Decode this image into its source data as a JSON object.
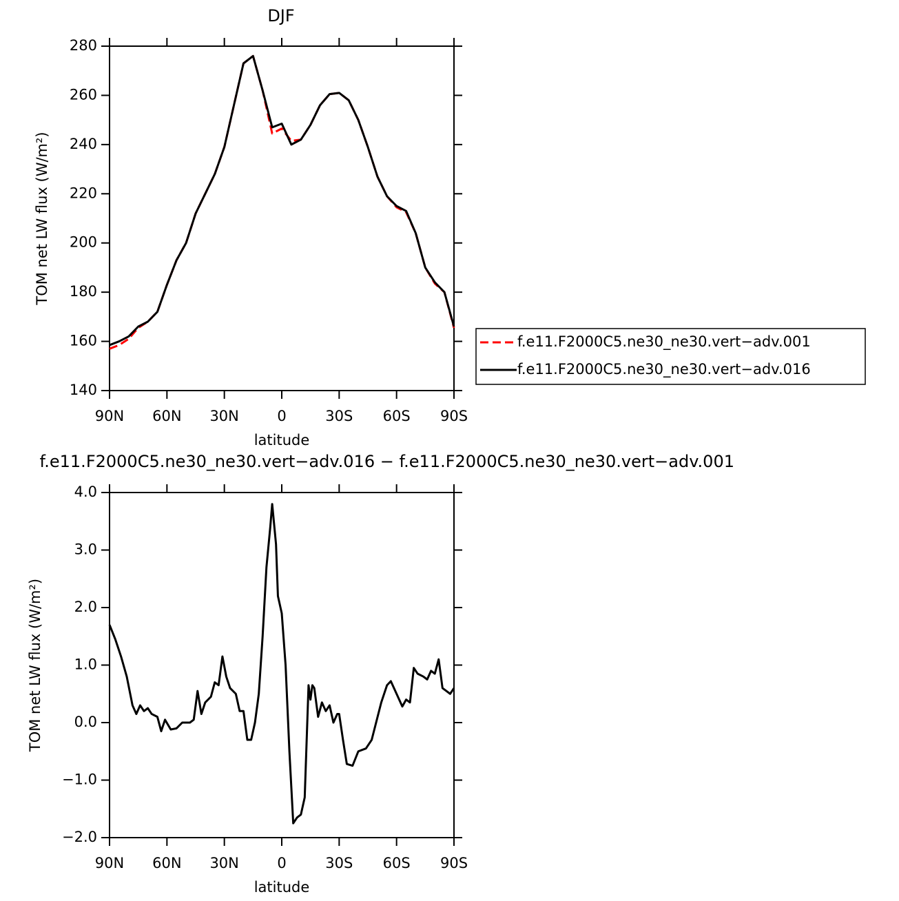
{
  "chart_data": [
    {
      "type": "line",
      "title": "DJF",
      "xlabel": "latitude",
      "ylabel": "TOM net LW flux (W/m²)",
      "x": [
        90,
        85,
        80,
        75,
        70,
        65,
        60,
        55,
        50,
        45,
        40,
        35,
        30,
        25,
        20,
        15,
        10,
        5,
        0,
        -5,
        -10,
        -15,
        -20,
        -25,
        -30,
        -35,
        -40,
        -45,
        -50,
        -55,
        -60,
        -65,
        -70,
        -75,
        -80,
        -85,
        -90
      ],
      "series": [
        {
          "name": "f.e11.F2000C5.ne30_ne30.vert−adv.001",
          "color": "#ff0000",
          "line_style": "dashed",
          "values": [
            157,
            158.5,
            161,
            165.5,
            168,
            172,
            183,
            193,
            200,
            212,
            220,
            228,
            239,
            256,
            273,
            276,
            262,
            244.5,
            246.5,
            241.5,
            242,
            248,
            256,
            260.5,
            261,
            258,
            250,
            239,
            227,
            219,
            214.5,
            212.5,
            204,
            190,
            183.5,
            180,
            165.5
          ]
        },
        {
          "name": "f.e11.F2000C5.ne30_ne30.vert−adv.016",
          "color": "#000000",
          "line_style": "solid",
          "values": [
            158.5,
            160,
            162,
            166,
            168,
            172,
            183,
            193,
            200,
            212,
            220,
            228,
            239,
            256,
            273,
            276,
            262,
            247,
            248.5,
            240,
            242,
            248,
            256,
            260.5,
            261,
            258,
            250,
            239,
            227,
            219,
            215,
            213,
            204,
            190,
            184,
            180,
            166
          ]
        }
      ],
      "xlim": [
        90,
        -90
      ],
      "xticks": [
        {
          "value": 90,
          "label": "90N"
        },
        {
          "value": 60,
          "label": "60N"
        },
        {
          "value": 30,
          "label": "30N"
        },
        0,
        {
          "value": -30,
          "label": "30S"
        },
        {
          "value": -60,
          "label": "60S"
        },
        {
          "value": -90,
          "label": "90S"
        }
      ],
      "ylim": [
        140,
        280
      ],
      "yticks": [
        140,
        160,
        180,
        200,
        220,
        240,
        260,
        280
      ],
      "legend": "right"
    },
    {
      "type": "line",
      "title": "f.e11.F2000C5.ne30_ne30.vert−adv.016 − f.e11.F2000C5.ne30_ne30.vert−adv.001",
      "xlabel": "latitude",
      "ylabel": "TOM net LW flux (W/m²)",
      "color": "#000000",
      "x": [
        90,
        87,
        84,
        81,
        78,
        76,
        74,
        72,
        70,
        68,
        65,
        63,
        61,
        58,
        55,
        52,
        48,
        46,
        44,
        42,
        40,
        37,
        35,
        33,
        31,
        29,
        27,
        24,
        22,
        20,
        18,
        16,
        14,
        12,
        10,
        8,
        6,
        5,
        3,
        2,
        0,
        -2,
        -4,
        -6,
        -8,
        -10,
        -12,
        -14,
        -15,
        -16,
        -17,
        -19,
        -21,
        -23,
        -25,
        -27,
        -29,
        -30,
        -32,
        -34,
        -37,
        -40,
        -44,
        -47,
        -52,
        -55,
        -57,
        -60,
        -63,
        -65,
        -67,
        -69,
        -71,
        -74,
        -76,
        -78,
        -80,
        -82,
        -84,
        -86,
        -88,
        -90
      ],
      "values": [
        1.7,
        1.45,
        1.15,
        0.8,
        0.3,
        0.15,
        0.3,
        0.2,
        0.25,
        0.15,
        0.1,
        -0.15,
        0.05,
        -0.12,
        -0.1,
        0.0,
        0.0,
        0.05,
        0.55,
        0.15,
        0.35,
        0.45,
        0.7,
        0.65,
        1.15,
        0.8,
        0.6,
        0.5,
        0.2,
        0.2,
        -0.3,
        -0.3,
        0.0,
        0.5,
        1.5,
        2.7,
        3.4,
        3.8,
        3.1,
        2.2,
        1.9,
        1.0,
        -0.5,
        -1.75,
        -1.65,
        -1.6,
        -1.3,
        0.65,
        0.4,
        0.65,
        0.6,
        0.1,
        0.35,
        0.2,
        0.3,
        0.0,
        0.15,
        0.15,
        -0.3,
        -0.72,
        -0.75,
        -0.5,
        -0.45,
        -0.3,
        0.35,
        0.65,
        0.72,
        0.5,
        0.28,
        0.4,
        0.35,
        0.95,
        0.85,
        0.8,
        0.75,
        0.9,
        0.85,
        1.1,
        0.6,
        0.55,
        0.5,
        0.6
      ],
      "xlim": [
        90,
        -90
      ],
      "xticks": [
        {
          "value": 90,
          "label": "90N"
        },
        {
          "value": 60,
          "label": "60N"
        },
        {
          "value": 30,
          "label": "30N"
        },
        0,
        {
          "value": -30,
          "label": "30S"
        },
        {
          "value": -60,
          "label": "60S"
        },
        {
          "value": -90,
          "label": "90S"
        }
      ],
      "ylim": [
        -2,
        4
      ],
      "yticks": [
        {
          "value": -2,
          "label": "−2.0"
        },
        {
          "value": -1,
          "label": "−1.0"
        },
        {
          "value": 0,
          "label": "0.0"
        },
        {
          "value": 1,
          "label": "1.0"
        },
        {
          "value": 2,
          "label": "2.0"
        },
        {
          "value": 3,
          "label": "3.0"
        },
        {
          "value": 4,
          "label": "4.0"
        }
      ]
    }
  ]
}
